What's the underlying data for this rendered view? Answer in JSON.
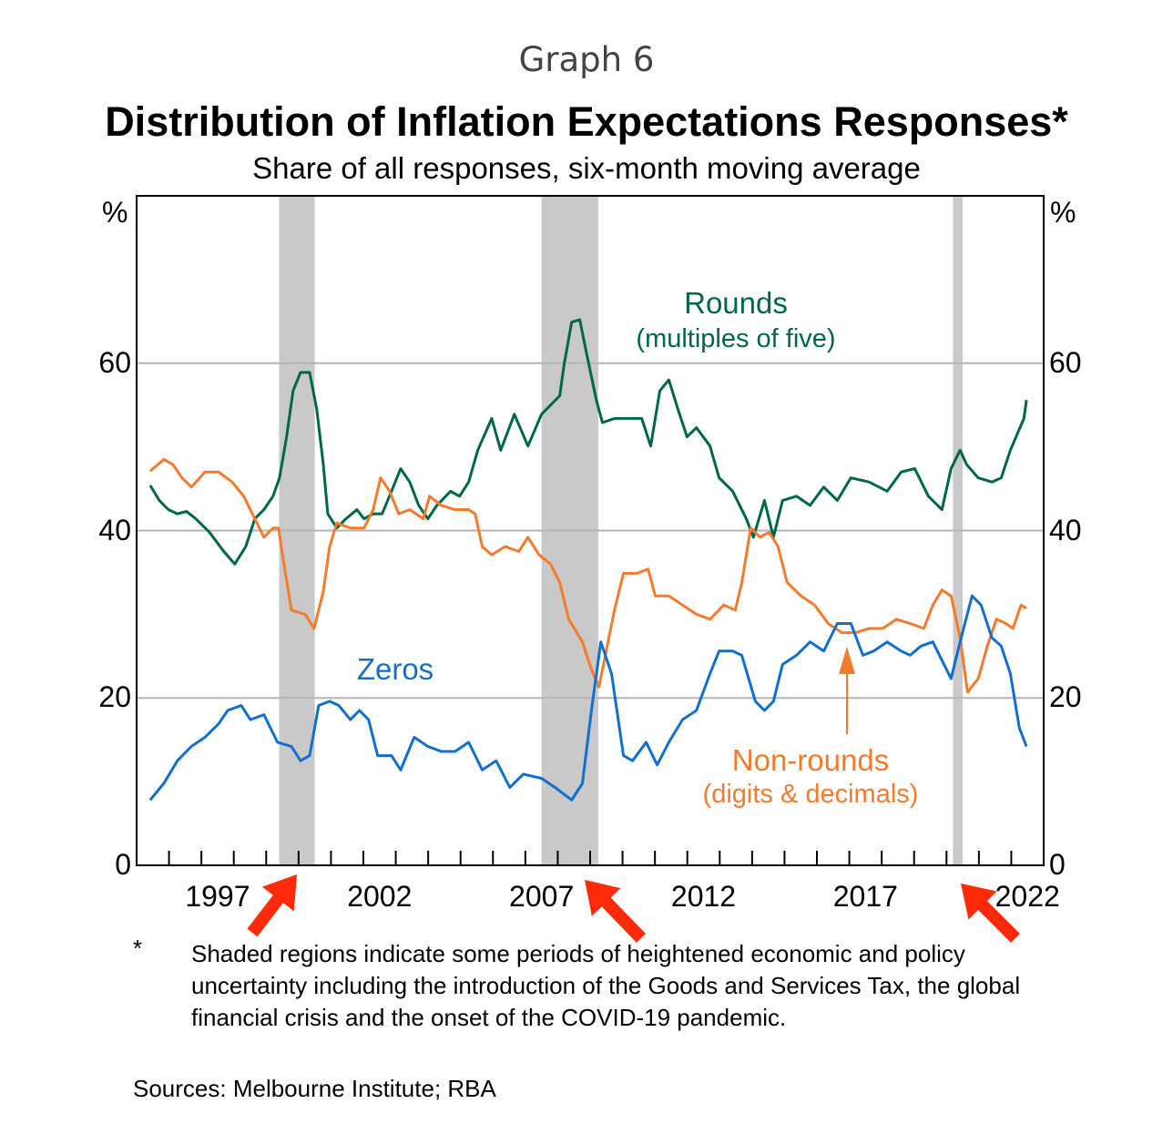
{
  "header": {
    "graph_number": "Graph 6"
  },
  "chart_data": {
    "type": "line",
    "title": "Distribution of Inflation Expectations Responses*",
    "subtitle": "Share of all responses, six-month moving average",
    "ylabel_left": "%",
    "ylabel_right": "%",
    "xlim": [
      1995,
      2023
    ],
    "ylim": [
      0,
      80
    ],
    "yticks": [
      0,
      20,
      40,
      60
    ],
    "xticks": [
      1997,
      2002,
      2007,
      2012,
      2017,
      2022
    ],
    "grid": true,
    "shaded_periods": [
      [
        1999.4,
        2000.5
      ],
      [
        2007.5,
        2009.25
      ],
      [
        2020.2,
        2020.5
      ]
    ],
    "colors": {
      "rounds": "#00674b",
      "nonrounds": "#f47a2c",
      "zeros": "#1170cf",
      "shade": "#c9c9c9",
      "red_arrow": "#ff2a0a"
    },
    "series": [
      {
        "name": "Rounds",
        "sublabel": "(multiples of five)",
        "key": "rounds",
        "points": [
          [
            1995.42,
            45.4
          ],
          [
            1995.7,
            43.6
          ],
          [
            1995.98,
            42.5
          ],
          [
            1996.26,
            42
          ],
          [
            1996.54,
            42.3
          ],
          [
            1996.83,
            41.4
          ],
          [
            1997.25,
            39.8
          ],
          [
            1997.67,
            37.6
          ],
          [
            1998.03,
            36
          ],
          [
            1998.37,
            38.1
          ],
          [
            1998.65,
            41.4
          ],
          [
            1998.93,
            42.5
          ],
          [
            1999.21,
            44.1
          ],
          [
            1999.41,
            46.3
          ],
          [
            1999.63,
            51.2
          ],
          [
            1999.83,
            56.7
          ],
          [
            2000.06,
            58.9
          ],
          [
            2000.34,
            58.9
          ],
          [
            2000.56,
            54.5
          ],
          [
            2000.76,
            48
          ],
          [
            2000.9,
            42
          ],
          [
            2001.18,
            40.3
          ],
          [
            2001.46,
            41.4
          ],
          [
            2001.8,
            42.5
          ],
          [
            2002.02,
            41.4
          ],
          [
            2002.3,
            42
          ],
          [
            2002.58,
            42
          ],
          [
            2002.87,
            44.7
          ],
          [
            2003.15,
            47.4
          ],
          [
            2003.43,
            45.8
          ],
          [
            2003.71,
            43
          ],
          [
            2003.99,
            41.4
          ],
          [
            2004.27,
            43
          ],
          [
            2004.69,
            44.7
          ],
          [
            2004.97,
            44.1
          ],
          [
            2005.25,
            45.8
          ],
          [
            2005.53,
            49.6
          ],
          [
            2005.96,
            53.4
          ],
          [
            2006.24,
            49.6
          ],
          [
            2006.66,
            53.9
          ],
          [
            2007.08,
            50.1
          ],
          [
            2007.5,
            53.9
          ],
          [
            2007.78,
            55
          ],
          [
            2008.06,
            56.1
          ],
          [
            2008.2,
            59.9
          ],
          [
            2008.43,
            64.9
          ],
          [
            2008.68,
            65.2
          ],
          [
            2008.9,
            61
          ],
          [
            2009.19,
            55.6
          ],
          [
            2009.38,
            52.9
          ],
          [
            2009.75,
            53.4
          ],
          [
            2010.17,
            53.4
          ],
          [
            2010.59,
            53.4
          ],
          [
            2010.87,
            50.1
          ],
          [
            2011.15,
            56.7
          ],
          [
            2011.43,
            58
          ],
          [
            2011.71,
            54.5
          ],
          [
            2011.99,
            51.2
          ],
          [
            2012.28,
            52.3
          ],
          [
            2012.7,
            50.1
          ],
          [
            2012.98,
            46.3
          ],
          [
            2013.4,
            44.7
          ],
          [
            2013.82,
            41.4
          ],
          [
            2014.04,
            39.2
          ],
          [
            2014.38,
            43.6
          ],
          [
            2014.66,
            39.2
          ],
          [
            2014.94,
            43.6
          ],
          [
            2015.37,
            44.1
          ],
          [
            2015.79,
            43
          ],
          [
            2016.21,
            45.2
          ],
          [
            2016.63,
            43.6
          ],
          [
            2017.05,
            46.3
          ],
          [
            2017.61,
            45.8
          ],
          [
            2018.17,
            44.7
          ],
          [
            2018.6,
            47
          ],
          [
            2019.02,
            47.4
          ],
          [
            2019.44,
            44.1
          ],
          [
            2019.86,
            42.5
          ],
          [
            2020.14,
            47.4
          ],
          [
            2020.42,
            49.6
          ],
          [
            2020.62,
            47.9
          ],
          [
            2020.98,
            46.3
          ],
          [
            2021.4,
            45.8
          ],
          [
            2021.69,
            46.3
          ],
          [
            2021.97,
            49.6
          ],
          [
            2022.39,
            53.4
          ],
          [
            2022.47,
            55.6
          ]
        ]
      },
      {
        "name": "Non-rounds",
        "sublabel": "(digits & decimals)",
        "key": "nonrounds",
        "points": [
          [
            1995.42,
            47.1
          ],
          [
            1995.84,
            48.5
          ],
          [
            1996.12,
            47.9
          ],
          [
            1996.4,
            46.3
          ],
          [
            1996.69,
            45.2
          ],
          [
            1997.11,
            47
          ],
          [
            1997.53,
            47
          ],
          [
            1997.95,
            45.8
          ],
          [
            1998.31,
            44.1
          ],
          [
            1998.65,
            41.4
          ],
          [
            1998.93,
            39.2
          ],
          [
            1999.21,
            40.3
          ],
          [
            1999.38,
            40.3
          ],
          [
            1999.55,
            36
          ],
          [
            1999.78,
            30.5
          ],
          [
            2000.2,
            30
          ],
          [
            2000.48,
            28.3
          ],
          [
            2000.76,
            32.7
          ],
          [
            2000.96,
            38.1
          ],
          [
            2001.18,
            40.9
          ],
          [
            2001.6,
            40.3
          ],
          [
            2002.02,
            40.3
          ],
          [
            2002.3,
            42.5
          ],
          [
            2002.53,
            46.3
          ],
          [
            2002.81,
            44.7
          ],
          [
            2003.09,
            42
          ],
          [
            2003.43,
            42.5
          ],
          [
            2003.85,
            41.4
          ],
          [
            2004.04,
            44.1
          ],
          [
            2004.41,
            43
          ],
          [
            2004.83,
            42.5
          ],
          [
            2005.25,
            42.5
          ],
          [
            2005.45,
            42
          ],
          [
            2005.67,
            38.1
          ],
          [
            2005.96,
            37.1
          ],
          [
            2006.38,
            38.1
          ],
          [
            2006.8,
            37.5
          ],
          [
            2007.08,
            39.2
          ],
          [
            2007.42,
            37.1
          ],
          [
            2007.78,
            36
          ],
          [
            2008.06,
            33.8
          ],
          [
            2008.34,
            29.4
          ],
          [
            2008.76,
            26.7
          ],
          [
            2009.04,
            23.4
          ],
          [
            2009.27,
            21.3
          ],
          [
            2009.47,
            25.1
          ],
          [
            2009.75,
            30.5
          ],
          [
            2010.03,
            34.9
          ],
          [
            2010.45,
            34.9
          ],
          [
            2010.79,
            35.4
          ],
          [
            2011.01,
            32.2
          ],
          [
            2011.43,
            32.2
          ],
          [
            2011.85,
            31.1
          ],
          [
            2012.28,
            30
          ],
          [
            2012.7,
            29.4
          ],
          [
            2013.12,
            31.1
          ],
          [
            2013.48,
            30.5
          ],
          [
            2013.68,
            33.8
          ],
          [
            2013.96,
            40.3
          ],
          [
            2014.24,
            39.2
          ],
          [
            2014.52,
            39.8
          ],
          [
            2014.8,
            38.1
          ],
          [
            2015.08,
            33.8
          ],
          [
            2015.51,
            32.2
          ],
          [
            2015.93,
            31.1
          ],
          [
            2016.35,
            28.9
          ],
          [
            2016.77,
            27.8
          ],
          [
            2017.19,
            27.8
          ],
          [
            2017.61,
            28.3
          ],
          [
            2018.03,
            28.3
          ],
          [
            2018.46,
            29.4
          ],
          [
            2018.88,
            28.9
          ],
          [
            2019.3,
            28.3
          ],
          [
            2019.58,
            31.1
          ],
          [
            2019.86,
            32.9
          ],
          [
            2020.14,
            32.2
          ],
          [
            2020.42,
            27.2
          ],
          [
            2020.65,
            20.7
          ],
          [
            2020.98,
            22.3
          ],
          [
            2021.26,
            26.2
          ],
          [
            2021.54,
            29.4
          ],
          [
            2021.83,
            28.9
          ],
          [
            2022.05,
            28.3
          ],
          [
            2022.3,
            31.1
          ],
          [
            2022.47,
            30.7
          ]
        ]
      },
      {
        "name": "Zeros",
        "key": "zeros",
        "points": [
          [
            1995.42,
            7.8
          ],
          [
            1995.84,
            9.8
          ],
          [
            1996.26,
            12.5
          ],
          [
            1996.69,
            14.2
          ],
          [
            1997.11,
            15.3
          ],
          [
            1997.53,
            16.9
          ],
          [
            1997.81,
            18.5
          ],
          [
            1998.23,
            19.1
          ],
          [
            1998.51,
            17.4
          ],
          [
            1998.93,
            18
          ],
          [
            1999.35,
            14.7
          ],
          [
            1999.78,
            14.2
          ],
          [
            2000.06,
            12.5
          ],
          [
            2000.34,
            13.1
          ],
          [
            2000.62,
            19.1
          ],
          [
            2000.96,
            19.6
          ],
          [
            2001.24,
            19.1
          ],
          [
            2001.6,
            17.4
          ],
          [
            2001.88,
            18.5
          ],
          [
            2002.16,
            17.4
          ],
          [
            2002.44,
            13.1
          ],
          [
            2002.87,
            13.1
          ],
          [
            2003.15,
            11.4
          ],
          [
            2003.57,
            15.3
          ],
          [
            2003.99,
            14.2
          ],
          [
            2004.41,
            13.6
          ],
          [
            2004.83,
            13.6
          ],
          [
            2005.25,
            14.7
          ],
          [
            2005.67,
            11.4
          ],
          [
            2006.1,
            12.5
          ],
          [
            2006.52,
            9.3
          ],
          [
            2006.94,
            10.9
          ],
          [
            2007.5,
            10.4
          ],
          [
            2007.92,
            9.3
          ],
          [
            2008.43,
            7.8
          ],
          [
            2008.76,
            9.8
          ],
          [
            2009.04,
            18.5
          ],
          [
            2009.33,
            26.7
          ],
          [
            2009.66,
            22.9
          ],
          [
            2010.03,
            13.1
          ],
          [
            2010.31,
            12.5
          ],
          [
            2010.73,
            14.7
          ],
          [
            2011.07,
            12
          ],
          [
            2011.43,
            14.7
          ],
          [
            2011.85,
            17.4
          ],
          [
            2012.28,
            18.5
          ],
          [
            2012.7,
            22.9
          ],
          [
            2012.98,
            25.6
          ],
          [
            2013.4,
            25.6
          ],
          [
            2013.68,
            25.1
          ],
          [
            2014.1,
            19.6
          ],
          [
            2014.38,
            18.5
          ],
          [
            2014.66,
            19.6
          ],
          [
            2014.94,
            24
          ],
          [
            2015.37,
            25.1
          ],
          [
            2015.79,
            26.7
          ],
          [
            2016.21,
            25.6
          ],
          [
            2016.63,
            28.9
          ],
          [
            2017.05,
            28.9
          ],
          [
            2017.42,
            25.1
          ],
          [
            2017.75,
            25.6
          ],
          [
            2018.17,
            26.7
          ],
          [
            2018.6,
            25.6
          ],
          [
            2018.88,
            25.1
          ],
          [
            2019.21,
            26.2
          ],
          [
            2019.58,
            26.7
          ],
          [
            2019.86,
            24.5
          ],
          [
            2020.14,
            22.3
          ],
          [
            2020.42,
            26.7
          ],
          [
            2020.79,
            32.2
          ],
          [
            2021.07,
            31.1
          ],
          [
            2021.4,
            27.2
          ],
          [
            2021.69,
            26.2
          ],
          [
            2021.97,
            22.9
          ],
          [
            2022.25,
            16.4
          ],
          [
            2022.47,
            14.2
          ]
        ]
      }
    ]
  },
  "footnote": {
    "marker": "*",
    "text": "Shaded regions indicate some periods of heightened economic and policy uncertainty including the introduction of the Goods and Services Tax, the global financial crisis and the onset of the COVID-19 pandemic."
  },
  "sources": "Sources: Melbourne Institute; RBA"
}
